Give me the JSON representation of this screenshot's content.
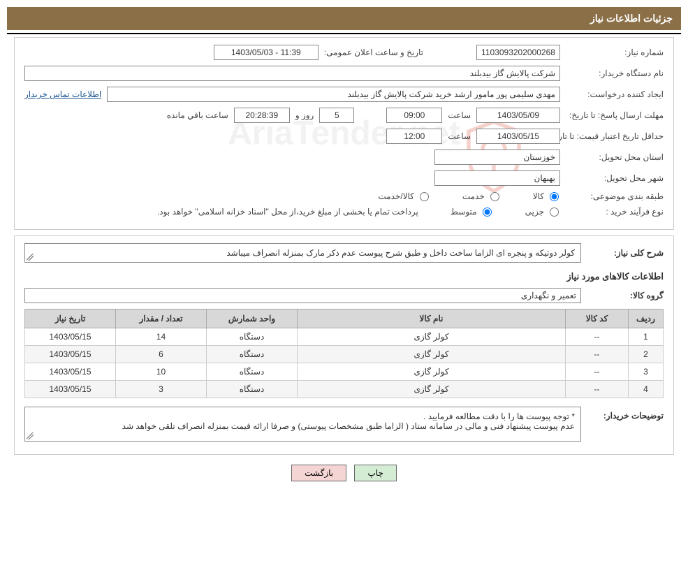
{
  "header": {
    "title": "جزئیات اطلاعات نیاز"
  },
  "fields": {
    "need_number_label": "شماره نیاز:",
    "need_number": "1103093202000268",
    "announce_datetime_label": "تاریخ و ساعت اعلان عمومی:",
    "announce_datetime": "1403/05/03 - 11:39",
    "buyer_org_label": "نام دستگاه خریدار:",
    "buyer_org": "شرکت پالایش گاز بیدبلند",
    "requester_label": "ایجاد کننده درخواست:",
    "requester": "مهدی سلیمی پور مامور ارشد خرید شرکت پالایش گاز بیدبلند",
    "contact_link": "اطلاعات تماس خریدار",
    "answer_deadline_label": "مهلت ارسال پاسخ: تا تاریخ:",
    "answer_deadline_date": "1403/05/09",
    "time_label": "ساعت",
    "answer_deadline_time": "09:00",
    "days_label": "روز و",
    "days_remaining": "5",
    "countdown": "20:28:39",
    "remaining_label": "ساعت باقي مانده",
    "price_validity_label": "حداقل تاریخ اعتبار قیمت: تا تاریخ:",
    "price_validity_date": "1403/05/15",
    "price_validity_time": "12:00",
    "delivery_province_label": "استان محل تحویل:",
    "delivery_province": "خوزستان",
    "delivery_city_label": "شهر محل تحویل:",
    "delivery_city": "بهبهان",
    "category_label": "طبقه بندی موضوعی:",
    "cat_goods": "کالا",
    "cat_service": "خدمت",
    "cat_goods_service": "کالا/خدمت",
    "process_type_label": "نوع فرآیند خرید :",
    "proc_partial": "جزیی",
    "proc_medium": "متوسط",
    "payment_note": "پرداخت تمام یا بخشی از مبلغ خرید،از محل \"اسناد خزانه اسلامی\" خواهد بود."
  },
  "description": {
    "general_label": "شرح کلی نیاز:",
    "general_text": "کولر دوتیکه و پنجره ای الزاما ساخت داخل و  طبق شرح پیوست عدم ذکر مارک بمنزله انصراف میباشد",
    "items_section_title": "اطلاعات کالاهای مورد نیاز",
    "group_label": "گروه کالا:",
    "group_value": "تعمیر و نگهداری",
    "buyer_notes_label": "توضیحات خریدار:",
    "buyer_notes_text": "* توجه پیوست ها  را با دقت مطالعه فرمایید .\nعدم پیوست پیشنهاد فنی و مالی در سامانه ستاد ( الزاما طبق مشخصات پیوستی)  و صرفا ارائه قیمت بمنزله انصراف تلقی خواهد شد"
  },
  "table": {
    "headers": {
      "idx": "ردیف",
      "code": "کد کالا",
      "name": "نام کالا",
      "unit": "واحد شمارش",
      "qty": "تعداد / مقدار",
      "date": "تاریخ نیاز"
    },
    "rows": [
      {
        "idx": "1",
        "code": "--",
        "name": "کولر گازی",
        "unit": "دستگاه",
        "qty": "14",
        "date": "1403/05/15"
      },
      {
        "idx": "2",
        "code": "--",
        "name": "کولر گازی",
        "unit": "دستگاه",
        "qty": "6",
        "date": "1403/05/15"
      },
      {
        "idx": "3",
        "code": "--",
        "name": "کولر گازی",
        "unit": "دستگاه",
        "qty": "10",
        "date": "1403/05/15"
      },
      {
        "idx": "4",
        "code": "--",
        "name": "کولر گازی",
        "unit": "دستگاه",
        "qty": "3",
        "date": "1403/05/15"
      }
    ]
  },
  "buttons": {
    "print": "چاپ",
    "back": "بازگشت"
  },
  "watermark": "AriaTender.net",
  "colors": {
    "header_bg": "#8b6f47",
    "header_fg": "#ffffff",
    "border": "#cccccc",
    "field_border": "#888888",
    "th_bg": "#d8d8d8",
    "link": "#1a5490",
    "btn_print": "#d4ecd4",
    "btn_back": "#f5d4d4"
  }
}
